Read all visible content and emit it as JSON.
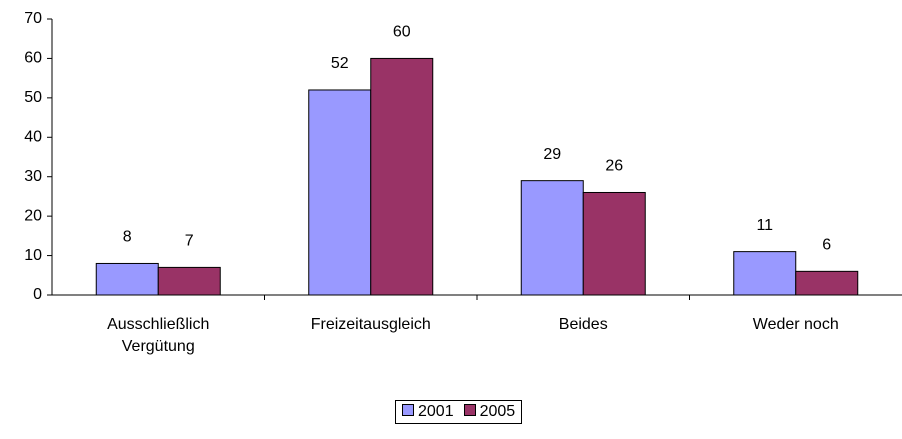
{
  "chart_data": {
    "type": "bar",
    "categories": [
      "Ausschließlich Vergütung",
      "Freizeitausgleich",
      "Beides",
      "Weder noch"
    ],
    "series": [
      {
        "name": "2001",
        "color": "#9999ff",
        "values": [
          8,
          52,
          29,
          11
        ]
      },
      {
        "name": "2005",
        "color": "#993366",
        "values": [
          7,
          60,
          26,
          6
        ]
      }
    ],
    "ylim": [
      0,
      70
    ],
    "yticks": [
      0,
      10,
      20,
      30,
      40,
      50,
      60,
      70
    ],
    "grid": false,
    "legend": "bottom"
  }
}
